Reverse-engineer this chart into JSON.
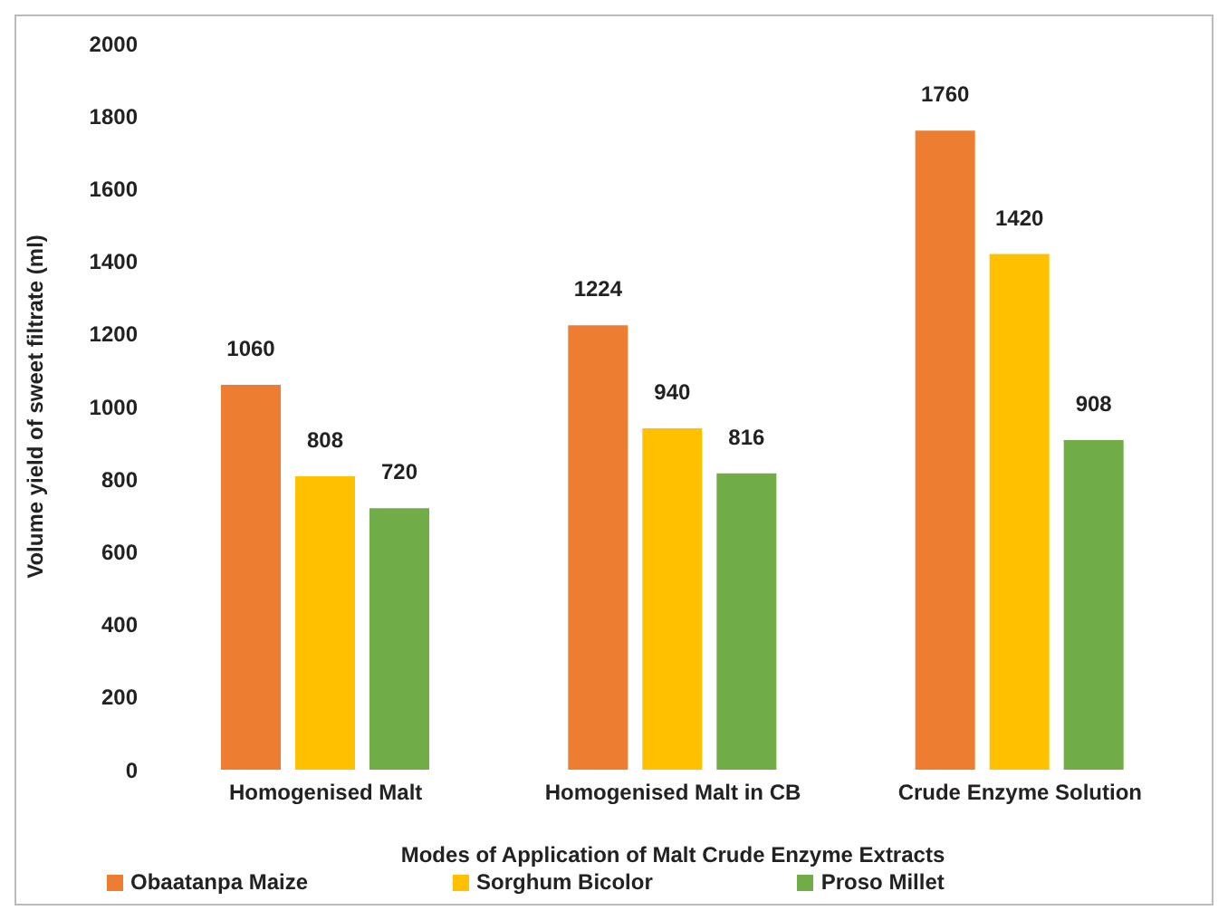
{
  "chart_data": {
    "type": "bar",
    "xlabel": "Modes of Application of Malt Crude Enzyme Extracts",
    "ylabel": "Volume yield of sweet filtrate (ml)",
    "categories": [
      "Homogenised Malt",
      "Homogenised Malt in CB",
      "Crude Enzyme Solution"
    ],
    "series": [
      {
        "name": "Obaatanpa Maize",
        "color": "#ed7d31",
        "values": [
          1060,
          1224,
          1760
        ]
      },
      {
        "name": "Sorghum Bicolor",
        "color": "#ffc000",
        "values": [
          808,
          940,
          1420
        ]
      },
      {
        "name": "Proso Millet",
        "color": "#70ad47",
        "values": [
          720,
          816,
          908
        ]
      }
    ],
    "ylim": [
      0,
      2000
    ],
    "yticks": [
      0,
      200,
      400,
      600,
      800,
      1000,
      1200,
      1400,
      1600,
      1800,
      2000
    ],
    "grid": false,
    "legend": "bottom",
    "data_labels": true
  }
}
